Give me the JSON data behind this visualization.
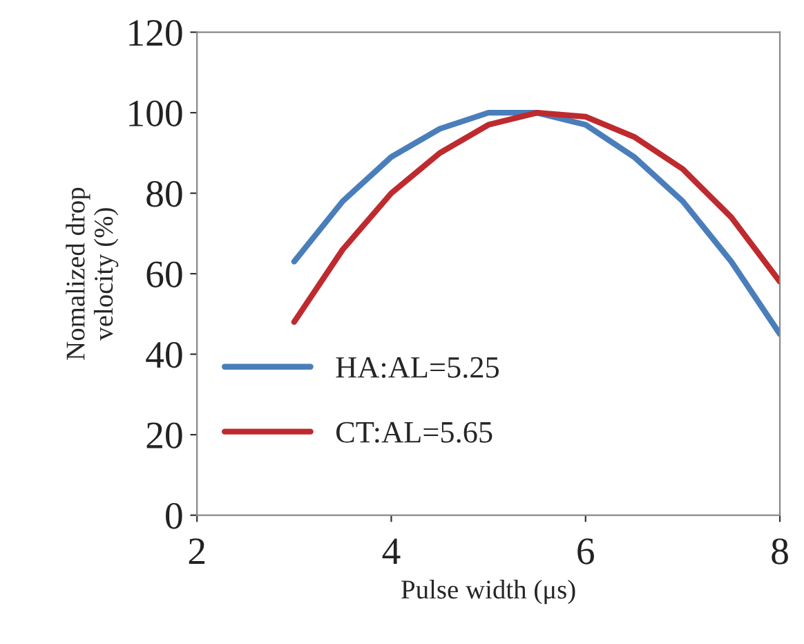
{
  "chart_data": {
    "type": "line",
    "xlabel": "Pulse width (μs)",
    "ylabel": "Nomalized drop\nvelocity (%)",
    "x": [
      3,
      3.5,
      4,
      4.5,
      5,
      5.5,
      6,
      6.5,
      7,
      7.5,
      8
    ],
    "series": [
      {
        "name": "HA:AL=5.25",
        "color": "#4a7ebb",
        "values": [
          63,
          78,
          89,
          96,
          100,
          100,
          97,
          89,
          78,
          63,
          45
        ]
      },
      {
        "name": "CT:AL=5.65",
        "color": "#be2a2e",
        "values": [
          48,
          66,
          80,
          90,
          97,
          100,
          99,
          94,
          86,
          74,
          58
        ]
      }
    ],
    "xlim": [
      2,
      8
    ],
    "xticks": [
      2,
      4,
      6,
      8
    ],
    "ylim": [
      0,
      120
    ],
    "yticks": [
      0,
      20,
      40,
      60,
      80,
      100,
      120
    ],
    "grid": false,
    "legend": "bottom left",
    "marker": "none",
    "line_style": "solid"
  }
}
